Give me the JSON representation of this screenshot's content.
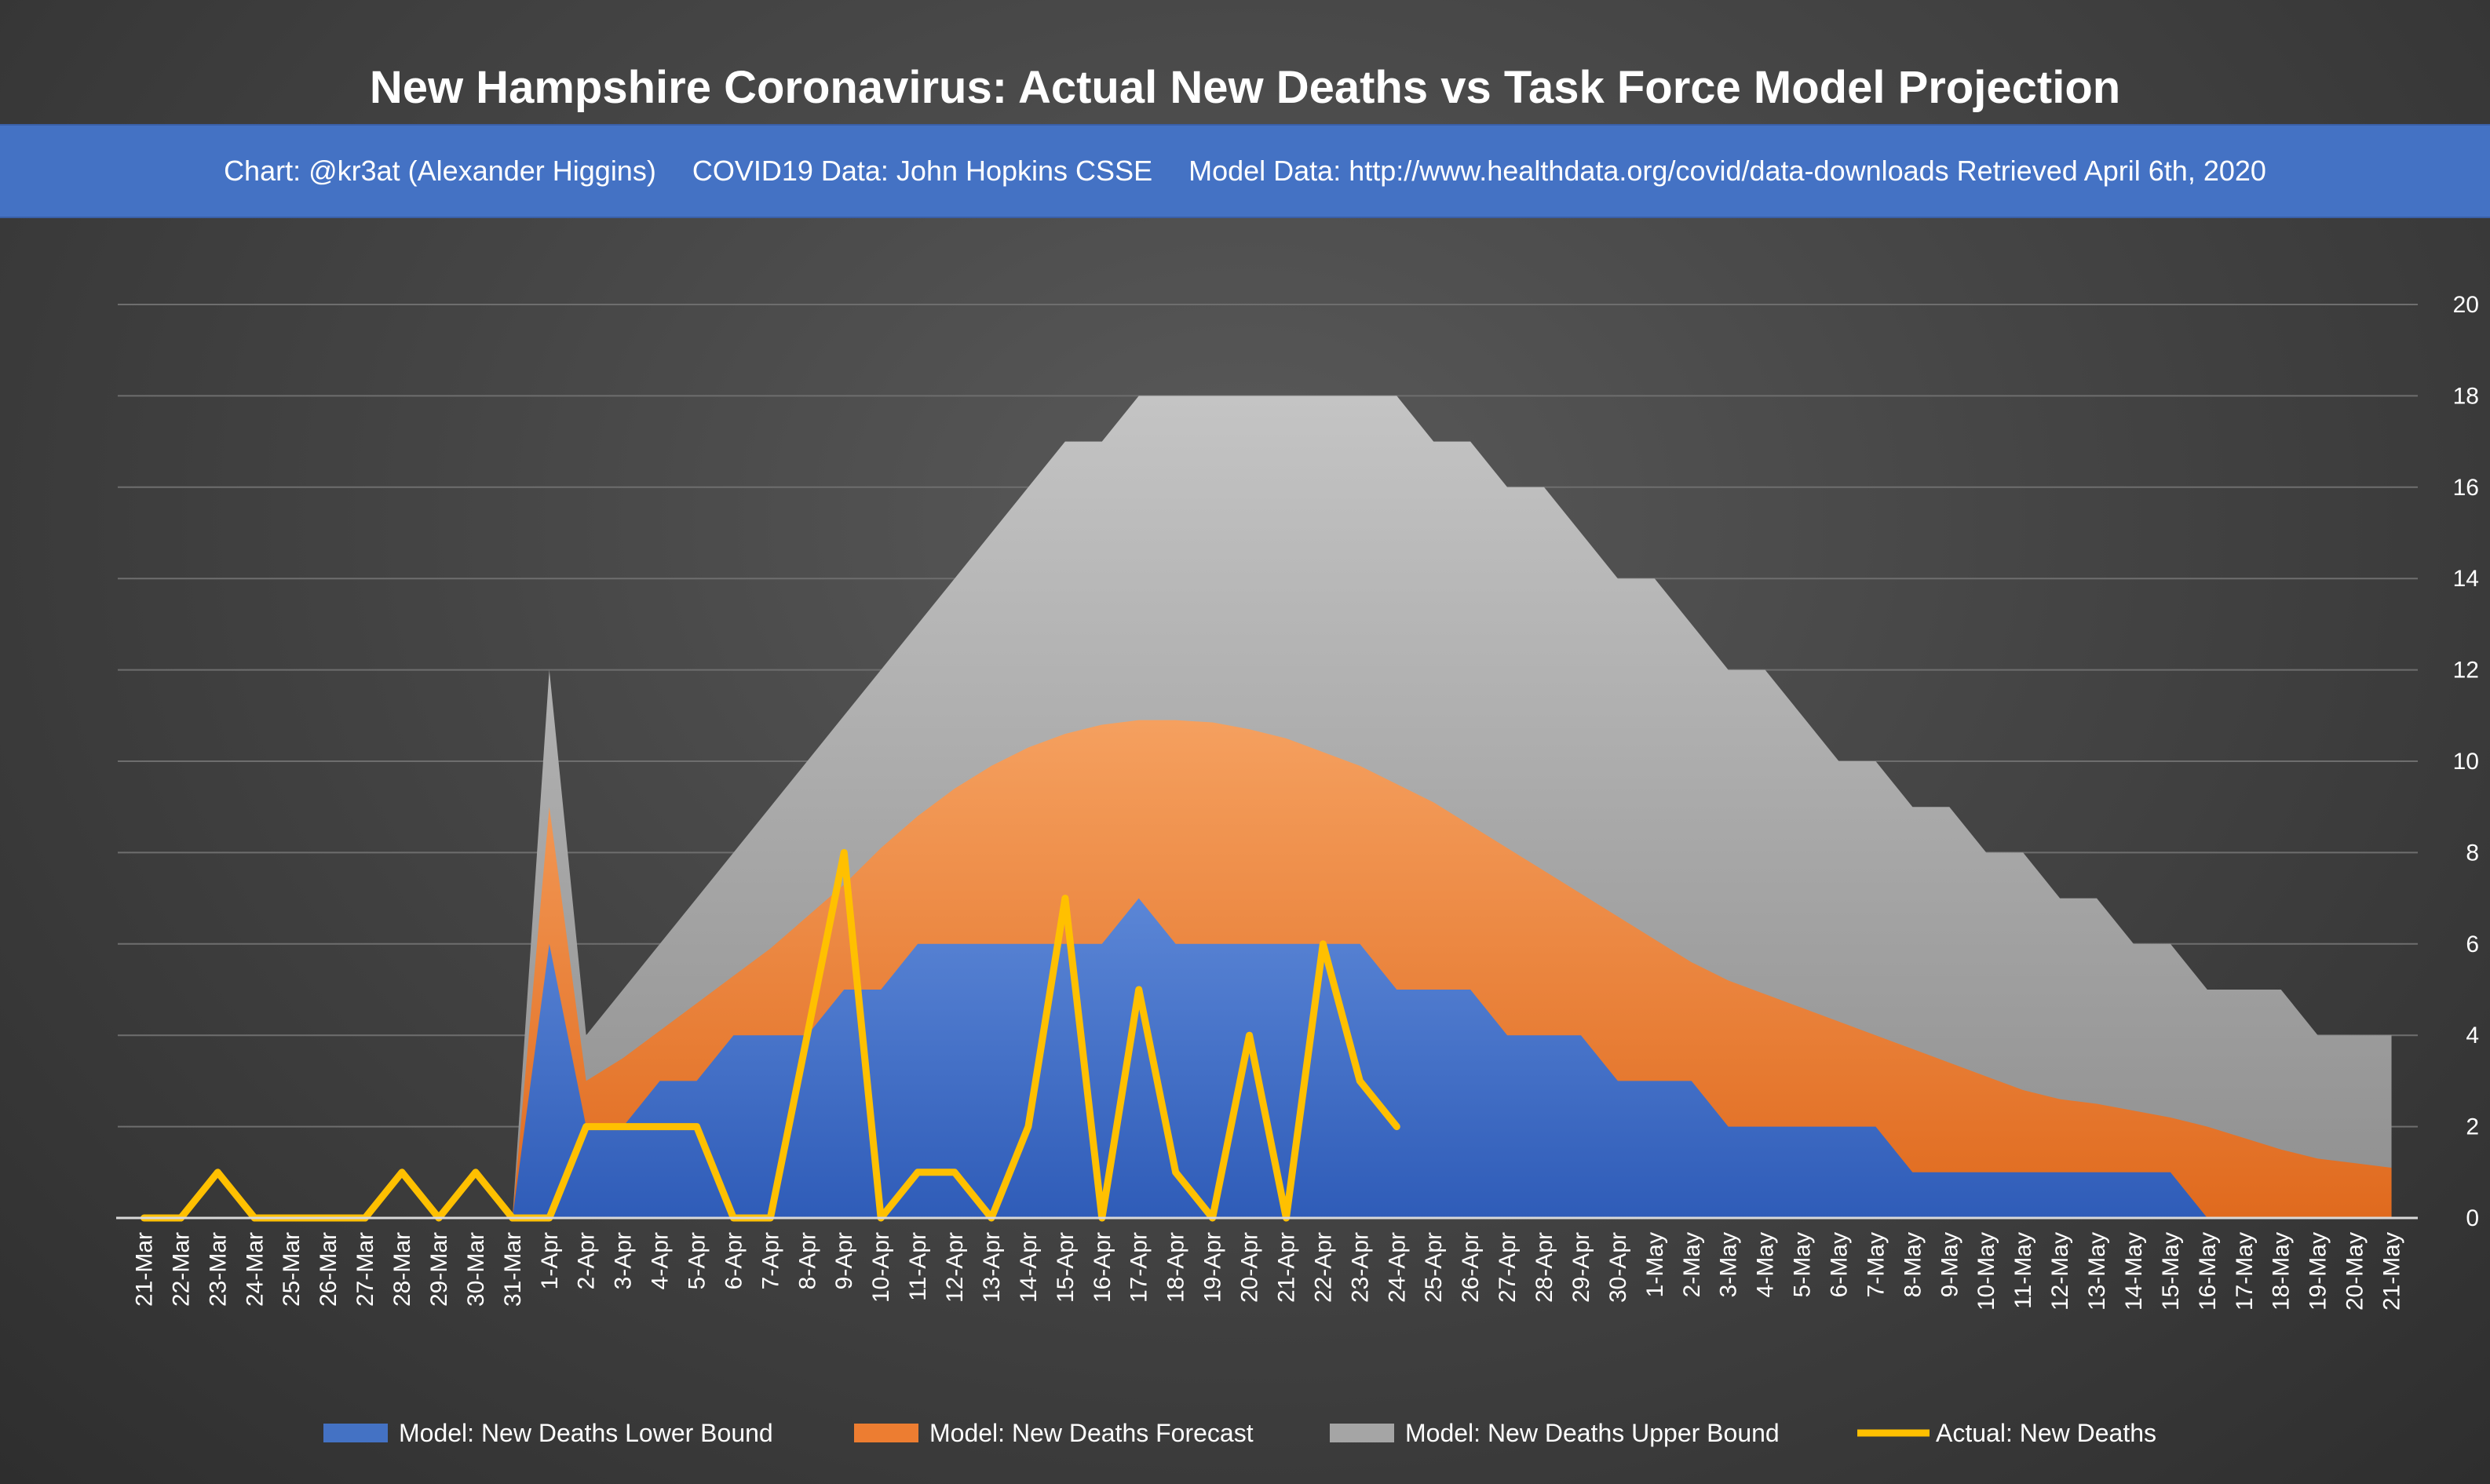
{
  "title": "New Hampshire Coronavirus: Actual New Deaths vs Task Force Model Projection",
  "subtitle": {
    "chart_credit": "Chart: @kr3at (Alexander Higgins)",
    "covid_data": "COVID19 Data: John Hopkins CSSE",
    "model_data": "Model Data: http://www.healthdata.org/covid/data-downloads Retrieved April 6th, 2020"
  },
  "colors": {
    "lower_bound": "#4472c4",
    "forecast": "#ed7d31",
    "upper_bound": "#a5a5a5",
    "actual": "#ffc000"
  },
  "chart_data": {
    "type": "area",
    "title": "New Hampshire Coronavirus: Actual New Deaths vs Task Force Model Projection",
    "ylim": [
      0,
      20
    ],
    "y_ticks": [
      0,
      2,
      4,
      6,
      8,
      10,
      12,
      14,
      16,
      18,
      20
    ],
    "y_axis_position": "right",
    "grid": true,
    "legend_position": "bottom",
    "categories": [
      "21-Mar",
      "22-Mar",
      "23-Mar",
      "24-Mar",
      "25-Mar",
      "26-Mar",
      "27-Mar",
      "28-Mar",
      "29-Mar",
      "30-Mar",
      "31-Mar",
      "1-Apr",
      "2-Apr",
      "3-Apr",
      "4-Apr",
      "5-Apr",
      "6-Apr",
      "7-Apr",
      "8-Apr",
      "9-Apr",
      "10-Apr",
      "11-Apr",
      "12-Apr",
      "13-Apr",
      "14-Apr",
      "15-Apr",
      "16-Apr",
      "17-Apr",
      "18-Apr",
      "19-Apr",
      "20-Apr",
      "21-Apr",
      "22-Apr",
      "23-Apr",
      "24-Apr",
      "25-Apr",
      "26-Apr",
      "27-Apr",
      "28-Apr",
      "29-Apr",
      "30-Apr",
      "1-May",
      "2-May",
      "3-May",
      "4-May",
      "5-May",
      "6-May",
      "7-May",
      "8-May",
      "9-May",
      "10-May",
      "11-May",
      "12-May",
      "13-May",
      "14-May",
      "15-May",
      "16-May",
      "17-May",
      "18-May",
      "19-May",
      "20-May",
      "21-May"
    ],
    "series": [
      {
        "name": "Model: New Deaths Upper Bound",
        "kind": "area",
        "values": [
          0,
          0,
          0,
          0,
          0,
          0,
          0,
          0,
          0,
          0,
          0,
          12,
          4,
          5,
          6,
          7,
          8,
          9,
          10,
          11,
          12,
          13,
          14,
          15,
          16,
          17,
          17,
          18,
          18,
          18,
          18,
          18,
          18,
          18,
          18,
          17,
          17,
          16,
          16,
          15,
          14,
          14,
          13,
          12,
          12,
          11,
          10,
          10,
          9,
          9,
          8,
          8,
          7,
          7,
          6,
          6,
          5,
          5,
          5,
          4,
          4,
          4
        ]
      },
      {
        "name": "Model: New Deaths Forecast",
        "kind": "area",
        "values": [
          0,
          0,
          0,
          0,
          0,
          0,
          0,
          0,
          0,
          0,
          0,
          9,
          3,
          3.5,
          4.1,
          4.7,
          5.3,
          5.9,
          6.6,
          7.3,
          8.1,
          8.8,
          9.4,
          9.9,
          10.3,
          10.6,
          10.8,
          10.9,
          10.9,
          10.85,
          10.7,
          10.5,
          10.2,
          9.9,
          9.5,
          9.1,
          8.6,
          8.1,
          7.6,
          7.1,
          6.6,
          6.1,
          5.6,
          5.2,
          4.9,
          4.6,
          4.3,
          4.0,
          3.7,
          3.4,
          3.1,
          2.8,
          2.6,
          2.5,
          2.35,
          2.2,
          2.0,
          1.75,
          1.5,
          1.3,
          1.2,
          1.1
        ]
      },
      {
        "name": "Model: New Deaths Lower Bound",
        "kind": "area",
        "values": [
          0,
          0,
          0,
          0,
          0,
          0,
          0,
          0,
          0,
          0,
          0,
          6,
          2,
          2,
          3,
          3,
          4,
          4,
          4,
          5,
          5,
          6,
          6,
          6,
          6,
          6,
          6,
          7,
          6,
          6,
          6,
          6,
          6,
          6,
          5,
          5,
          5,
          4,
          4,
          4,
          3,
          3,
          3,
          2,
          2,
          2,
          2,
          2,
          1,
          1,
          1,
          1,
          1,
          1,
          1,
          1,
          0,
          0,
          0,
          0,
          0,
          0
        ]
      },
      {
        "name": "Actual: New Deaths",
        "kind": "line",
        "values": [
          0,
          0,
          1,
          0,
          0,
          0,
          0,
          1,
          0,
          1,
          0,
          0,
          2,
          2,
          2,
          2,
          0,
          0,
          4,
          8,
          0,
          1,
          1,
          0,
          2,
          7,
          0,
          5,
          1,
          0,
          4,
          0,
          6,
          3,
          2,
          null,
          null,
          null,
          null,
          null,
          null,
          null,
          null,
          null,
          null,
          null,
          null,
          null,
          null,
          null,
          null,
          null,
          null,
          null,
          null,
          null,
          null,
          null,
          null,
          null,
          null,
          null
        ]
      }
    ],
    "legend": [
      {
        "label": "Model: New Deaths Lower Bound",
        "color": "#4472c4",
        "symbol": "area"
      },
      {
        "label": "Model: New Deaths Forecast",
        "color": "#ed7d31",
        "symbol": "area"
      },
      {
        "label": "Model: New Deaths Upper Bound",
        "color": "#a5a5a5",
        "symbol": "area"
      },
      {
        "label": "Actual: New Deaths",
        "color": "#ffc000",
        "symbol": "line"
      }
    ]
  }
}
